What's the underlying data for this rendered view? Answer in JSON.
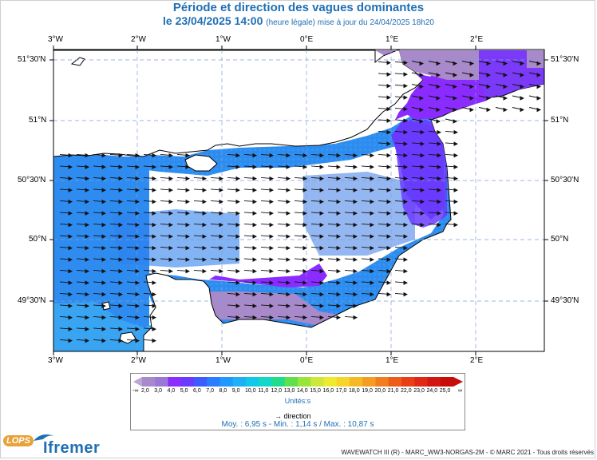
{
  "title": {
    "line1": "Période et direction des vagues dominantes",
    "line2_main": "le 23/04/2025 14:00",
    "line2_small": "(heure légale) mise à jour du 24/04/2025 18h20"
  },
  "axes": {
    "top_x": [
      "3°W",
      "2°W",
      "1°W",
      "0°E",
      "1°E",
      "2°E"
    ],
    "bottom_x": [
      "3°W",
      "2°W",
      "1°W",
      "0°E",
      "1°E",
      "2°E"
    ],
    "left_y": [
      "51°30'N",
      "51°N",
      "50°30'N",
      "50°N",
      "49°30'N"
    ],
    "right_y": [
      "51°30'N",
      "51°N",
      "50°30'N",
      "50°N",
      "49°30'N"
    ]
  },
  "legend": {
    "values": [
      "2,0",
      "3,0",
      "4,0",
      "5,0",
      "6,0",
      "7,0",
      "8,0",
      "9,0",
      "10,0",
      "11,0",
      "12,0",
      "13,0",
      "14,0",
      "15,0",
      "16,0",
      "17,0",
      "18,0",
      "19,0",
      "20,0",
      "21,0",
      "22,0",
      "23,0",
      "24,0",
      "25,0"
    ],
    "left_end": "-∞",
    "right_end": "∞",
    "colors": [
      "#a889c9",
      "#9a78d6",
      "#8c2cff",
      "#6a3bff",
      "#3c5cff",
      "#2a7dff",
      "#1f98ff",
      "#1cb0f5",
      "#12c8e8",
      "#14d8c6",
      "#1fdd8c",
      "#5fe04a",
      "#9ae53a",
      "#cde83a",
      "#eeea30",
      "#f5d528",
      "#f7b825",
      "#f59c22",
      "#f27d1e",
      "#ee5c1a",
      "#e83f16",
      "#e02814",
      "#d41612",
      "#c80c0c"
    ],
    "units": "Unités:s",
    "direction_label": "direction"
  },
  "stats": {
    "text": "Moy. : 6,95 s   -   Min. : 1,14 s / Max. : 10,87 s"
  },
  "credit": "WAVEWATCH III (R) - MARC_WW3-NORGAS-2M - © MARC 2021 - Tous droits réservés",
  "logos": {
    "lops": "LOPS",
    "ifremer": "Ifremer"
  },
  "map": {
    "sea_colors": {
      "main": "#2e8cf0",
      "light": "#38a4f2",
      "dark": "#2a6fe6",
      "purple": "#8a2cff",
      "lilac": "#a889c9"
    },
    "land_color": "#ffffff"
  }
}
